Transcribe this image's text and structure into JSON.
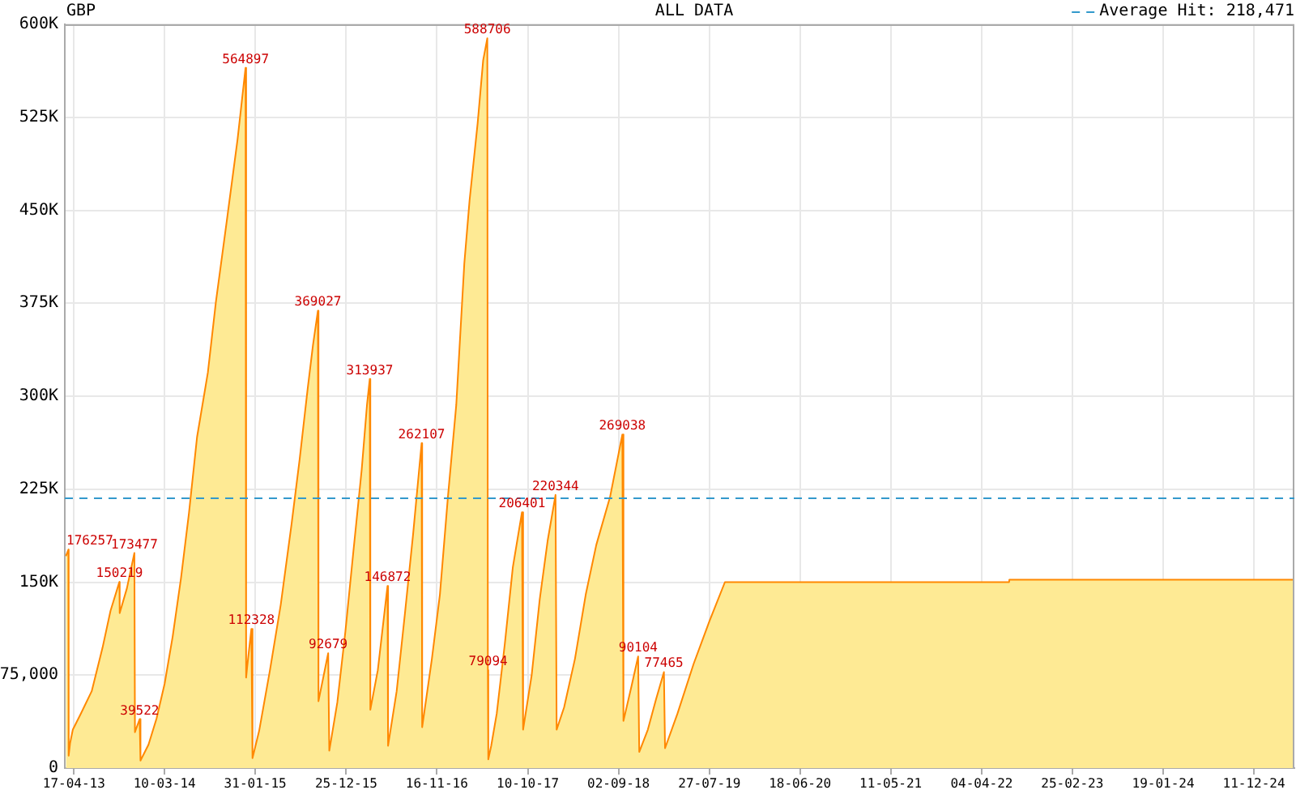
{
  "chart_data": {
    "type": "area",
    "title": "GBP",
    "subtitle": "ALL DATA",
    "xlim": [
      "2013-03-15",
      "2025-05-06"
    ],
    "xticks": [
      {
        "value": "2013-04-17",
        "label": "17-04-13"
      },
      {
        "value": "2014-03-10",
        "label": "10-03-14"
      },
      {
        "value": "2015-01-31",
        "label": "31-01-15"
      },
      {
        "value": "2015-12-25",
        "label": "25-12-15"
      },
      {
        "value": "2016-11-16",
        "label": "16-11-16"
      },
      {
        "value": "2017-10-10",
        "label": "10-10-17"
      },
      {
        "value": "2018-09-02",
        "label": "02-09-18"
      },
      {
        "value": "2019-07-27",
        "label": "27-07-19"
      },
      {
        "value": "2020-06-18",
        "label": "18-06-20"
      },
      {
        "value": "2021-05-11",
        "label": "11-05-21"
      },
      {
        "value": "2022-04-04",
        "label": "04-04-22"
      },
      {
        "value": "2023-02-25",
        "label": "25-02-23"
      },
      {
        "value": "2024-01-19",
        "label": "19-01-24"
      },
      {
        "value": "2024-12-11",
        "label": "11-12-24"
      }
    ],
    "ylim": [
      0,
      600000
    ],
    "yticks": [
      0,
      {
        "value": 75000,
        "label": "75,000"
      },
      {
        "value": 150000,
        "label": "150K"
      },
      {
        "value": 225000,
        "label": "225K"
      },
      {
        "value": 300000,
        "label": "300K"
      },
      {
        "value": 375000,
        "label": "375K"
      },
      {
        "value": 450000,
        "label": "450K"
      },
      {
        "value": 525000,
        "label": "525K"
      },
      {
        "value": 600000,
        "label": "600K"
      }
    ],
    "grid": true,
    "series": [
      {
        "color": "#ff8800",
        "x": [
          "2013-03-19",
          "2013-03-28",
          "2013-03-29",
          "2013-04-03",
          "2013-04-13",
          "2013-05-12",
          "2013-06-20",
          "2013-07-29",
          "2013-08-27",
          "2013-09-28",
          "2013-09-29",
          "2013-10-25",
          "2013-11-21",
          "2013-11-23",
          "2013-12-10",
          "2013-12-13",
          "2014-01-11",
          "2014-02-09",
          "2014-03-10",
          "2014-04-08",
          "2014-05-08",
          "2014-06-06",
          "2014-07-05",
          "2014-08-13",
          "2014-09-11",
          "2014-10-20",
          "2014-11-28",
          "2014-12-27",
          "2014-12-29",
          "2015-01-02",
          "2015-01-17",
          "2015-01-21",
          "2015-02-14",
          "2015-03-25",
          "2015-05-03",
          "2015-06-11",
          "2015-07-10",
          "2015-08-08",
          "2015-08-27",
          "2015-09-14",
          "2015-09-16",
          "2015-10-21",
          "2015-10-25",
          "2015-11-23",
          "2015-12-22",
          "2016-01-20",
          "2016-02-19",
          "2016-03-09",
          "2016-03-19",
          "2016-03-21",
          "2016-04-17",
          "2016-05-22",
          "2016-05-24",
          "2016-06-24",
          "2016-07-23",
          "2016-08-22",
          "2016-09-22",
          "2016-09-24",
          "2016-10-29",
          "2016-11-27",
          "2016-12-26",
          "2017-01-25",
          "2017-02-23",
          "2017-03-14",
          "2017-04-12",
          "2017-05-02",
          "2017-05-17",
          "2017-05-19",
          "2017-05-20",
          "2017-05-21",
          "2017-05-31",
          "2017-06-20",
          "2017-07-19",
          "2017-08-17",
          "2017-09-19",
          "2017-09-23",
          "2017-10-24",
          "2017-11-22",
          "2017-12-21",
          "2018-01-18",
          "2018-01-22",
          "2018-02-18",
          "2018-03-29",
          "2018-05-07",
          "2018-06-14",
          "2018-08-03",
          "2018-09-16",
          "2018-09-20",
          "2018-10-19",
          "2018-11-12",
          "2018-11-16",
          "2018-12-17",
          "2019-01-15",
          "2019-02-13",
          "2019-02-17",
          "2019-04-03",
          "2019-05-31",
          "2019-07-28",
          "2019-09-21",
          "2022-07-12",
          "2022-07-13",
          "2025-05-06"
        ],
        "values": [
          171000,
          176257,
          10000,
          20000,
          31000,
          44000,
          62000,
          97000,
          127000,
          150219,
          125000,
          145000,
          173477,
          29000,
          39522,
          6000,
          19000,
          40000,
          68000,
          106000,
          153000,
          206000,
          267000,
          319000,
          376000,
          441000,
          507000,
          564897,
          73000,
          82000,
          112328,
          8000,
          30000,
          79000,
          132000,
          197000,
          249000,
          306000,
          341000,
          369027,
          54000,
          92679,
          14000,
          53000,
          110000,
          175000,
          241000,
          293000,
          313937,
          47000,
          79000,
          146872,
          18000,
          62000,
          123000,
          188000,
          262107,
          33000,
          88000,
          140000,
          219000,
          293000,
          407000,
          458000,
          520000,
          571000,
          588706,
          75000,
          79094,
          7000,
          18000,
          44000,
          100000,
          162000,
          206401,
          31000,
          75000,
          136000,
          184000,
          220344,
          31000,
          49000,
          88000,
          140000,
          180000,
          219000,
          269038,
          38000,
          66000,
          90104,
          13000,
          31000,
          55000,
          77465,
          16000,
          44000,
          84000,
          119000,
          150000,
          150000,
          152000,
          152000
        ],
        "value_labels": [
          null,
          "176257",
          null,
          null,
          null,
          null,
          null,
          null,
          null,
          "150219",
          null,
          null,
          "173477",
          null,
          "39522",
          null,
          null,
          null,
          null,
          null,
          null,
          null,
          null,
          null,
          null,
          null,
          null,
          "564897",
          null,
          null,
          "112328",
          null,
          null,
          null,
          null,
          null,
          null,
          null,
          null,
          "369027",
          null,
          "92679",
          null,
          null,
          null,
          null,
          null,
          null,
          "313937",
          null,
          null,
          "146872",
          null,
          null,
          null,
          null,
          "262107",
          null,
          null,
          null,
          null,
          null,
          null,
          null,
          null,
          null,
          "588706",
          null,
          "79094",
          null,
          null,
          null,
          null,
          null,
          "206401",
          null,
          null,
          null,
          null,
          "220344",
          null,
          null,
          null,
          null,
          null,
          null,
          "269038",
          null,
          null,
          "90104",
          null,
          null,
          null,
          "77465",
          null,
          null,
          null,
          null,
          null,
          null,
          null,
          null
        ]
      }
    ],
    "ref_lines": [
      {
        "axis": "y",
        "value": 218471,
        "label": "Average Hit: 218,471",
        "color": "#3399cc",
        "line_style": "dashed"
      }
    ]
  }
}
